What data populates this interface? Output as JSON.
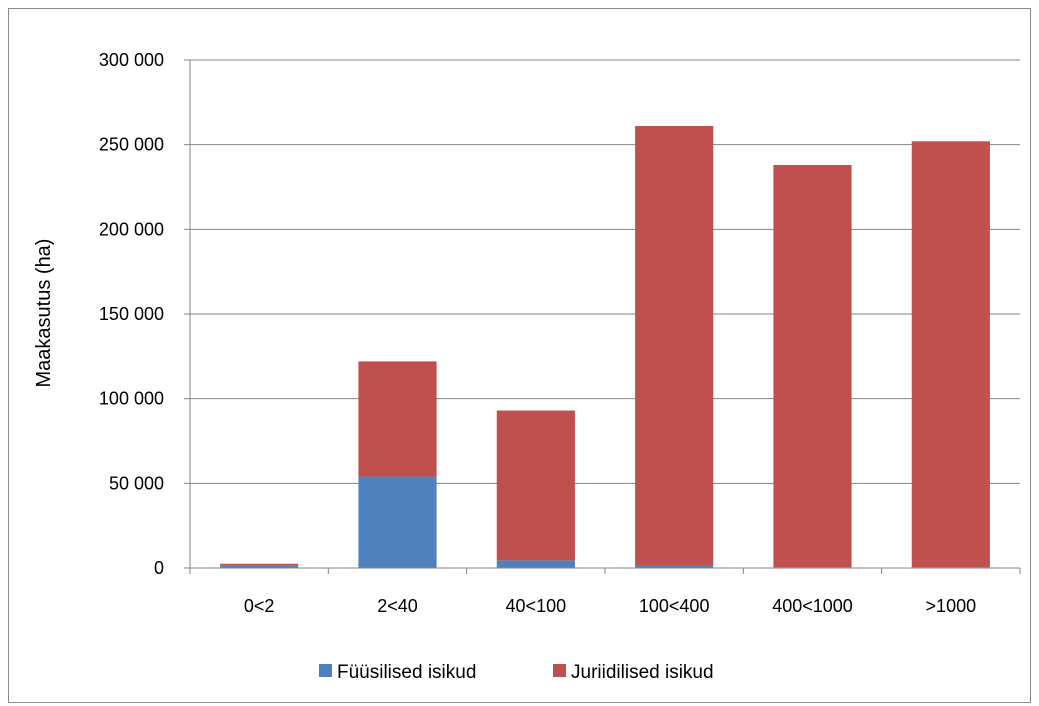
{
  "chart_data": {
    "type": "bar",
    "stacked": true,
    "title": "",
    "xlabel": "",
    "ylabel": "Maakasutus (ha)",
    "categories": [
      "0<2",
      "2<40",
      "40<100",
      "100<400",
      "400<1000",
      ">1000"
    ],
    "series": [
      {
        "name": "Füüsilised isikud",
        "color": "#4f81bd",
        "values": [
          1300,
          54000,
          4500,
          1500,
          500,
          500
        ]
      },
      {
        "name": "Juriidilised isikud",
        "color": "#c0504d",
        "values": [
          1200,
          68000,
          88500,
          259500,
          237500,
          251500
        ]
      }
    ],
    "ylim": [
      0,
      300000
    ],
    "yticks": [
      0,
      50000,
      100000,
      150000,
      200000,
      250000,
      300000
    ],
    "ytick_labels": [
      "0",
      "50 000",
      "100 000",
      "150 000",
      "200 000",
      "250 000",
      "300 000"
    ],
    "grid": true,
    "legend_position": "bottom"
  }
}
